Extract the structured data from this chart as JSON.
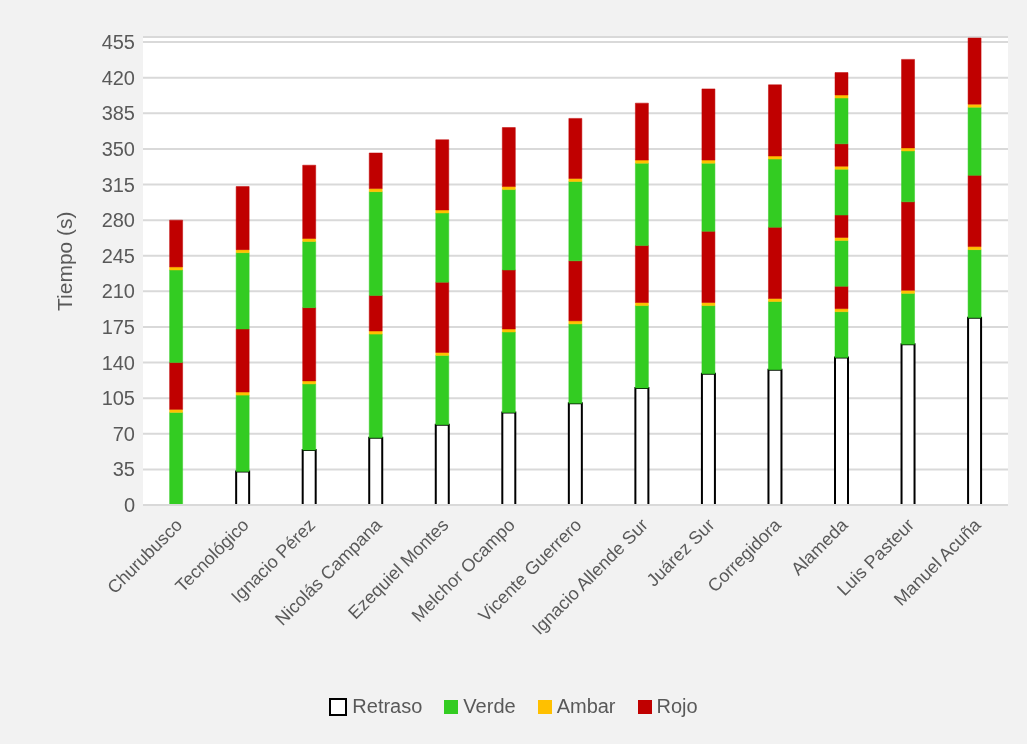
{
  "chart_data": {
    "type": "bar",
    "stacked": true,
    "ylabel": "Tiempo (s)",
    "categories": [
      "Churubusco",
      "Tecnológico",
      "Ignacio Pérez",
      "Nicolás Campana",
      "Ezequiel Montes",
      "Melchor Ocampo",
      "Vicente Guerrero",
      "Ignacio Allende Sur",
      "Juárez Sur",
      "Corregidora",
      "Alameda",
      "Luis Pasteur",
      "Manuel Acuña"
    ],
    "series": [
      {
        "name": "Retraso",
        "color": "#ffffff",
        "values": [
          0,
          33,
          54,
          66,
          79,
          91,
          100,
          115,
          129,
          133,
          145,
          158,
          184
        ]
      },
      {
        "name": "Verde",
        "color": "#33cc22",
        "values": [
          91,
          75,
          65,
          102,
          68,
          79,
          78,
          81,
          67,
          67,
          45,
          50,
          67
        ]
      },
      {
        "name": "Ambar",
        "color": "#ffc000",
        "values": [
          3,
          3,
          3,
          3,
          3,
          3,
          3,
          3,
          3,
          3,
          3,
          3,
          3
        ]
      },
      {
        "name": "Rojo",
        "color": "#c00000",
        "values": [
          46,
          62,
          72,
          35,
          69,
          58,
          59,
          56,
          70,
          70,
          22,
          87,
          70
        ]
      },
      {
        "color": "#33cc22",
        "values": [
          91,
          75,
          65,
          102,
          68,
          79,
          78,
          81,
          67,
          67,
          45,
          50,
          67
        ]
      },
      {
        "color": "#ffc000",
        "values": [
          3,
          3,
          3,
          3,
          3,
          3,
          3,
          3,
          3,
          3,
          3,
          3,
          3
        ]
      },
      {
        "color": "#c00000",
        "values": [
          46,
          62,
          72,
          35,
          69,
          58,
          59,
          56,
          70,
          70,
          22,
          87,
          65
        ]
      },
      {
        "color": "#33cc22",
        "values": [
          null,
          null,
          null,
          null,
          null,
          null,
          null,
          null,
          null,
          null,
          45,
          null,
          null
        ]
      },
      {
        "color": "#ffc000",
        "values": [
          null,
          null,
          null,
          null,
          null,
          null,
          null,
          null,
          null,
          null,
          3,
          null,
          null
        ]
      },
      {
        "color": "#c00000",
        "values": [
          null,
          null,
          null,
          null,
          null,
          null,
          null,
          null,
          null,
          null,
          22,
          null,
          null
        ]
      },
      {
        "color": "#33cc22",
        "values": [
          null,
          null,
          null,
          null,
          null,
          null,
          null,
          null,
          null,
          null,
          45,
          null,
          null
        ]
      },
      {
        "color": "#ffc000",
        "values": [
          null,
          null,
          null,
          null,
          null,
          null,
          null,
          null,
          null,
          null,
          3,
          null,
          null
        ]
      },
      {
        "color": "#c00000",
        "values": [
          null,
          null,
          null,
          null,
          null,
          null,
          null,
          null,
          null,
          null,
          22,
          null,
          null
        ]
      }
    ],
    "ylim": [
      0,
      460
    ],
    "yticks": [
      0,
      35,
      70,
      105,
      140,
      175,
      210,
      245,
      280,
      315,
      350,
      385,
      420,
      455
    ],
    "grid": "y",
    "legend": "bottom"
  }
}
